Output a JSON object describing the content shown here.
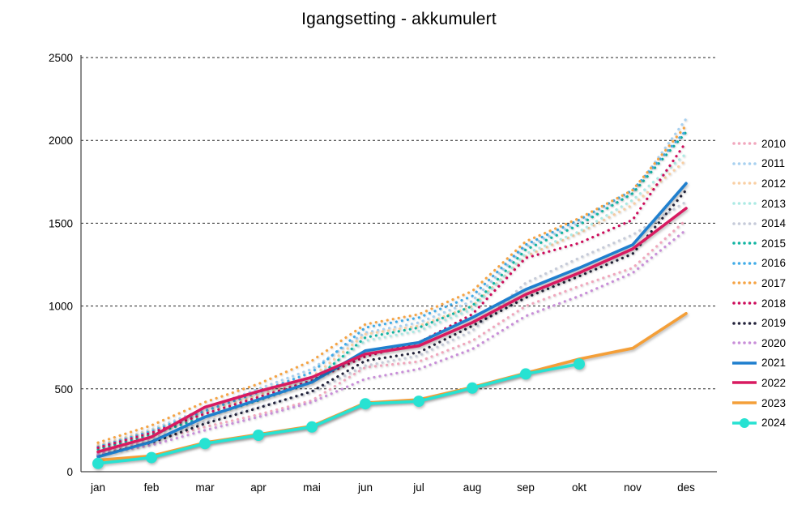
{
  "title": "Igangsetting - akkumulert",
  "chart_data": {
    "type": "line",
    "x": [
      "jan",
      "feb",
      "mar",
      "apr",
      "mai",
      "jun",
      "jul",
      "aug",
      "sep",
      "okt",
      "nov",
      "des"
    ],
    "ylim": [
      0,
      2500
    ],
    "y_ticks": [
      0,
      500,
      1000,
      1500,
      2000,
      2500
    ],
    "grid": "horizontal-dashed",
    "legend_position": "right",
    "series": [
      {
        "name": "2010",
        "color": "#F1A7BD",
        "style": "dotted",
        "marker": false,
        "values": [
          110,
          185,
          270,
          345,
          430,
          630,
          665,
          790,
          1000,
          1120,
          1230,
          1520
        ]
      },
      {
        "name": "2011",
        "color": "#A8D1F0",
        "style": "dotted",
        "marker": false,
        "values": [
          155,
          255,
          380,
          500,
          620,
          840,
          900,
          1030,
          1355,
          1500,
          1680,
          2130
        ]
      },
      {
        "name": "2012",
        "color": "#F9CFA4",
        "style": "dotted",
        "marker": false,
        "values": [
          160,
          250,
          360,
          460,
          570,
          830,
          880,
          1000,
          1300,
          1440,
          1610,
          1880
        ]
      },
      {
        "name": "2013",
        "color": "#ACEAE4",
        "style": "dotted",
        "marker": false,
        "values": [
          140,
          230,
          340,
          440,
          560,
          790,
          850,
          980,
          1315,
          1450,
          1640,
          1920
        ]
      },
      {
        "name": "2014",
        "color": "#C6CBD9",
        "style": "dotted",
        "marker": false,
        "values": [
          120,
          200,
          300,
          390,
          480,
          640,
          700,
          850,
          1140,
          1290,
          1430,
          1630
        ]
      },
      {
        "name": "2015",
        "color": "#12B5A2",
        "style": "dotted",
        "marker": false,
        "values": [
          135,
          225,
          330,
          430,
          540,
          810,
          870,
          1000,
          1340,
          1490,
          1680,
          2050
        ]
      },
      {
        "name": "2016",
        "color": "#41ACE8",
        "style": "dotted",
        "marker": false,
        "values": [
          150,
          245,
          365,
          480,
          600,
          870,
          930,
          1060,
          1370,
          1520,
          1700,
          2060
        ]
      },
      {
        "name": "2017",
        "color": "#F6A444",
        "style": "dotted",
        "marker": false,
        "values": [
          175,
          280,
          420,
          530,
          670,
          890,
          950,
          1090,
          1390,
          1530,
          1700,
          2090
        ]
      },
      {
        "name": "2018",
        "color": "#CE0D5C",
        "style": "dotted",
        "marker": false,
        "values": [
          145,
          235,
          350,
          450,
          550,
          695,
          780,
          950,
          1290,
          1380,
          1520,
          1990
        ]
      },
      {
        "name": "2019",
        "color": "#23233B",
        "style": "dotted",
        "marker": false,
        "values": [
          100,
          175,
          290,
          385,
          485,
          670,
          720,
          880,
          1050,
          1180,
          1315,
          1700
        ]
      },
      {
        "name": "2020",
        "color": "#C98FD9",
        "style": "dotted",
        "marker": false,
        "values": [
          105,
          160,
          250,
          330,
          420,
          560,
          620,
          740,
          940,
          1060,
          1200,
          1460
        ]
      },
      {
        "name": "2021",
        "color": "#1F7FCE",
        "style": "solid",
        "marker": false,
        "values": [
          90,
          180,
          330,
          435,
          540,
          730,
          780,
          930,
          1100,
          1230,
          1370,
          1740
        ]
      },
      {
        "name": "2022",
        "color": "#D81A60",
        "style": "solid",
        "marker": false,
        "values": [
          120,
          210,
          390,
          485,
          570,
          710,
          760,
          900,
          1070,
          1200,
          1345,
          1590
        ]
      },
      {
        "name": "2023",
        "color": "#F49F38",
        "style": "solid",
        "marker": false,
        "values": [
          70,
          95,
          175,
          225,
          275,
          415,
          435,
          510,
          595,
          680,
          745,
          955
        ]
      },
      {
        "name": "2024",
        "color": "#27E2D2",
        "style": "solid",
        "marker": true,
        "values": [
          50,
          85,
          170,
          220,
          270,
          410,
          425,
          505,
          590,
          650,
          null,
          null
        ]
      }
    ]
  }
}
